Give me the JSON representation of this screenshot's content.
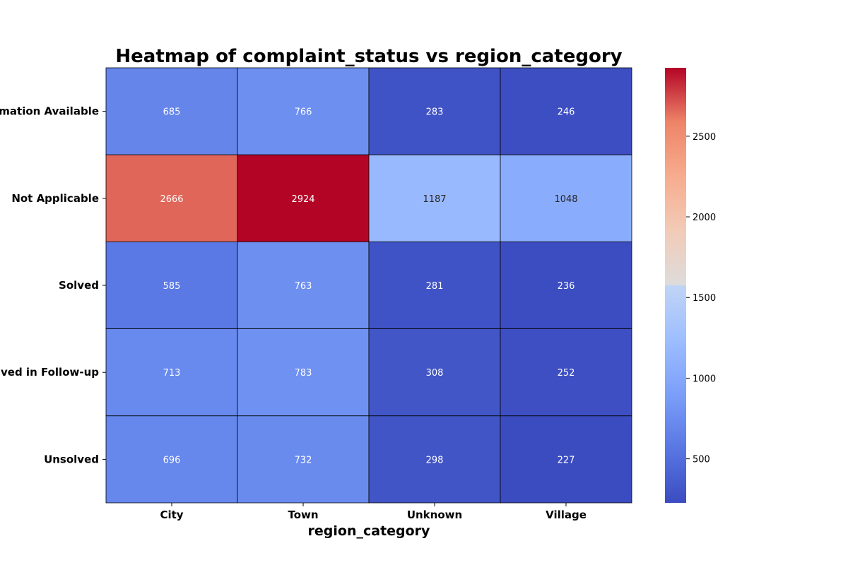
{
  "chart_data": {
    "type": "heatmap",
    "title": "Heatmap of complaint_status vs region_category",
    "xlabel": "region_category",
    "ylabel": "",
    "x_categories": [
      "City",
      "Town",
      "Unknown",
      "Village"
    ],
    "y_categories": [
      "No Information Available",
      "Not Applicable",
      "Solved",
      "Solved in Follow-up",
      "Unsolved"
    ],
    "values": [
      [
        685,
        766,
        283,
        246
      ],
      [
        2666,
        2924,
        1187,
        1048
      ],
      [
        585,
        763,
        281,
        236
      ],
      [
        713,
        783,
        308,
        252
      ],
      [
        696,
        732,
        298,
        227
      ]
    ],
    "colormap": "coolwarm",
    "color_range": [
      227,
      2924
    ],
    "colorbar_ticks": [
      500,
      1000,
      1500,
      2000,
      2500
    ],
    "cell_labels": true,
    "cell_borders": "#000000",
    "legend": "colorbar-right"
  }
}
